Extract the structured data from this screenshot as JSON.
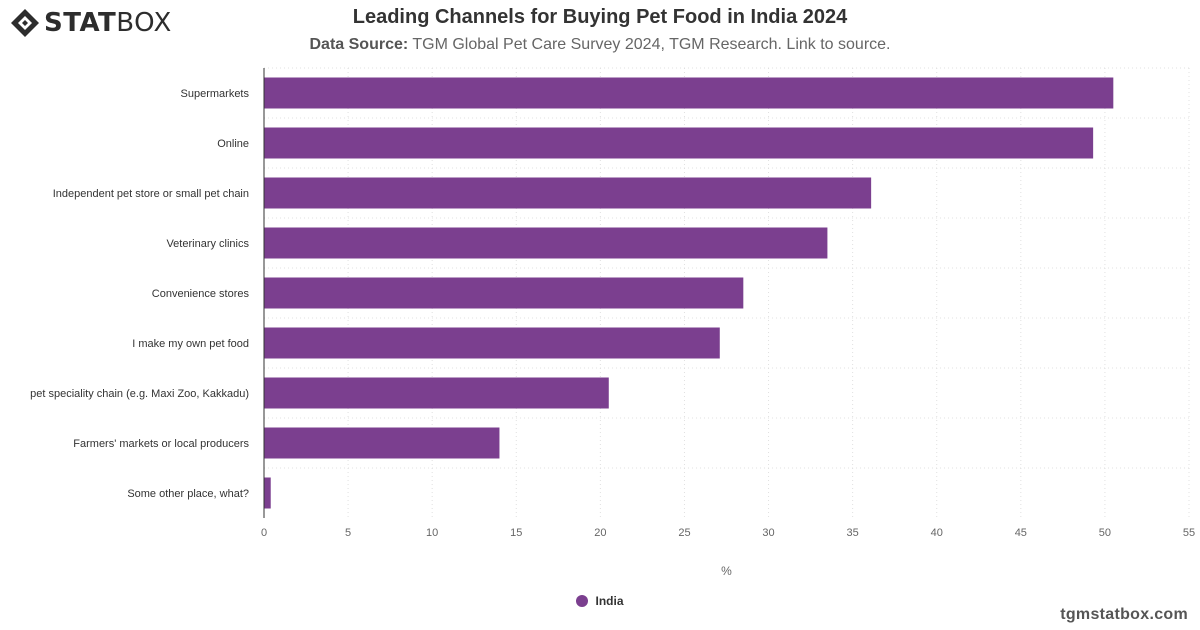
{
  "brand": {
    "logo_bold": "STAT",
    "logo_light": "BOX",
    "footer_site": "tgmstatbox.com"
  },
  "header": {
    "title": "Leading Channels for Buying Pet Food in India 2024",
    "source_label": "Data Source:",
    "source_text": "TGM Global Pet Care Survey 2024, TGM Research. Link to source."
  },
  "colors": {
    "bar": "#7b3f8f",
    "grid": "#e0e0e0",
    "axis": "#333333"
  },
  "chart_data": {
    "type": "bar",
    "orientation": "horizontal",
    "categories": [
      "Supermarkets",
      "Online",
      "Independent pet store or small pet chain",
      "Veterinary clinics",
      "Convenience stores",
      "I make my own pet food",
      "pet speciality chain (e.g. Maxi Zoo, Kakkadu)",
      "Farmers' markets or local producers",
      "Some other place, what?"
    ],
    "series": [
      {
        "name": "India",
        "values": [
          50.5,
          49.3,
          36.1,
          33.5,
          28.5,
          27.1,
          20.5,
          14.0,
          0.4
        ]
      }
    ],
    "xlabel": "%",
    "xlim": [
      0,
      55
    ],
    "xticks": [
      0,
      5,
      10,
      15,
      20,
      25,
      30,
      35,
      40,
      45,
      50,
      55
    ],
    "grid": true,
    "legend_position": "bottom-center"
  }
}
